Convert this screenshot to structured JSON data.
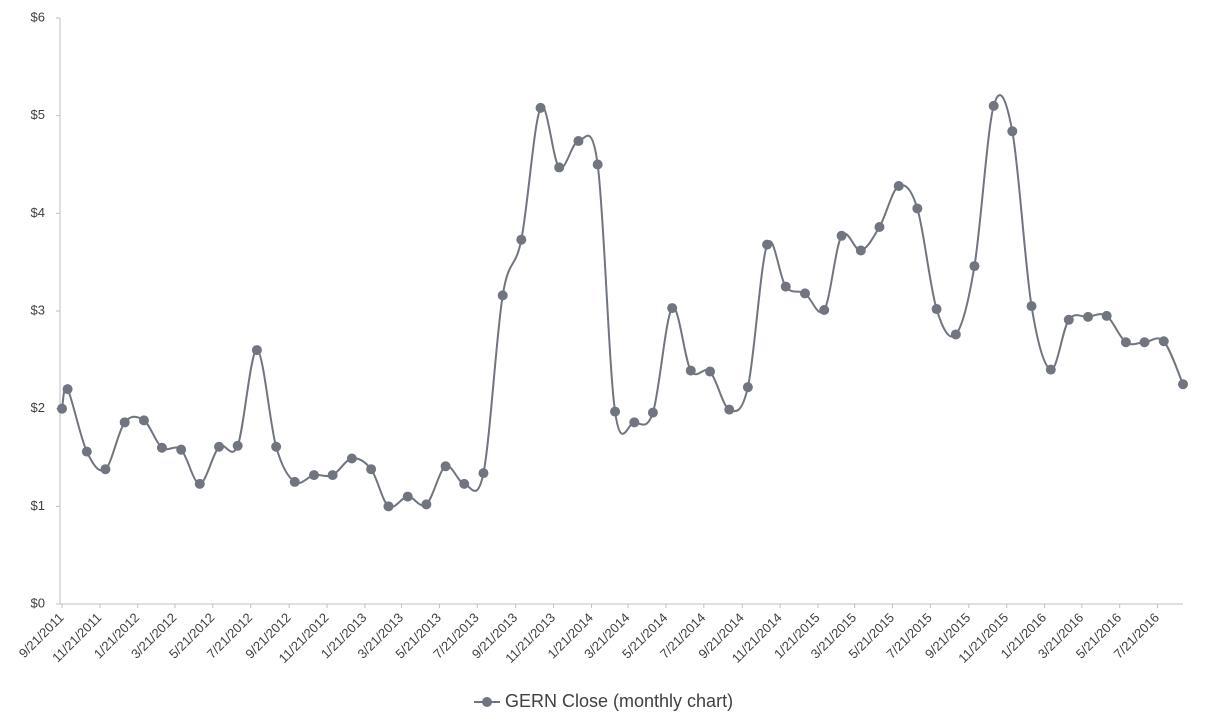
{
  "chart_data": {
    "type": "line",
    "x": [
      "9/21/2011",
      "9/30/2011",
      "10/31/2011",
      "11/30/2011",
      "12/31/2011",
      "1/31/2012",
      "2/29/2012",
      "3/31/2012",
      "4/30/2012",
      "5/31/2012",
      "6/30/2012",
      "7/31/2012",
      "8/31/2012",
      "9/30/2012",
      "10/31/2012",
      "11/30/2012",
      "12/31/2012",
      "1/31/2013",
      "2/28/2013",
      "3/31/2013",
      "4/30/2013",
      "5/31/2013",
      "6/30/2013",
      "7/31/2013",
      "8/31/2013",
      "9/30/2013",
      "10/31/2013",
      "11/30/2013",
      "12/31/2013",
      "1/31/2014",
      "2/28/2014",
      "3/31/2014",
      "4/30/2014",
      "5/31/2014",
      "6/30/2014",
      "7/31/2014",
      "8/31/2014",
      "9/30/2014",
      "10/31/2014",
      "11/30/2014",
      "12/31/2014",
      "1/31/2015",
      "2/28/2015",
      "3/31/2015",
      "4/30/2015",
      "5/31/2015",
      "6/30/2015",
      "7/31/2015",
      "8/31/2015",
      "9/30/2015",
      "10/31/2015",
      "11/30/2015",
      "12/31/2015",
      "1/31/2016",
      "2/29/2016",
      "3/31/2016",
      "4/30/2016",
      "5/31/2016",
      "6/30/2016",
      "7/31/2016",
      "8/31/2016"
    ],
    "series": [
      {
        "name": "GERN Close (monthly chart)",
        "color": "#707580",
        "values": [
          2.0,
          2.2,
          1.56,
          1.38,
          1.86,
          1.88,
          1.6,
          1.58,
          1.23,
          1.61,
          1.62,
          2.6,
          1.61,
          1.25,
          1.32,
          1.32,
          1.49,
          1.38,
          1.0,
          1.1,
          1.02,
          1.41,
          1.23,
          1.34,
          3.16,
          3.73,
          5.08,
          4.47,
          4.74,
          4.5,
          1.97,
          1.86,
          1.96,
          3.03,
          2.39,
          2.38,
          1.99,
          2.22,
          3.68,
          3.25,
          3.18,
          3.01,
          3.77,
          3.62,
          3.86,
          4.28,
          4.05,
          3.02,
          2.76,
          3.46,
          5.1,
          4.84,
          3.05,
          2.4,
          2.91,
          2.94,
          2.95,
          2.68,
          2.68,
          2.69,
          2.25
        ]
      }
    ],
    "xlim": [
      "9/21/2011",
      "8/31/2016"
    ],
    "xticks": [
      "9/21/2011",
      "11/21/2011",
      "1/21/2012",
      "3/21/2012",
      "5/21/2012",
      "7/21/2012",
      "9/21/2012",
      "11/21/2012",
      "1/21/2013",
      "3/21/2013",
      "5/21/2013",
      "7/21/2013",
      "9/21/2013",
      "11/21/2013",
      "1/21/2014",
      "3/21/2014",
      "5/21/2014",
      "7/21/2014",
      "9/21/2014",
      "11/21/2014",
      "1/21/2015",
      "3/21/2015",
      "5/21/2015",
      "7/21/2015",
      "9/21/2015",
      "11/21/2015",
      "1/21/2016",
      "3/21/2016",
      "5/21/2016",
      "7/21/2016"
    ],
    "ylim": [
      0,
      6
    ],
    "yticks": [
      {
        "value": 0,
        "label": "$0"
      },
      {
        "value": 1,
        "label": "$1"
      },
      {
        "value": 2,
        "label": "$2"
      },
      {
        "value": 3,
        "label": "$3"
      },
      {
        "value": 4,
        "label": "$4"
      },
      {
        "value": 5,
        "label": "$5"
      },
      {
        "value": 6,
        "label": "$6"
      }
    ],
    "smooth": true,
    "grid": false,
    "legend": "bottom"
  }
}
